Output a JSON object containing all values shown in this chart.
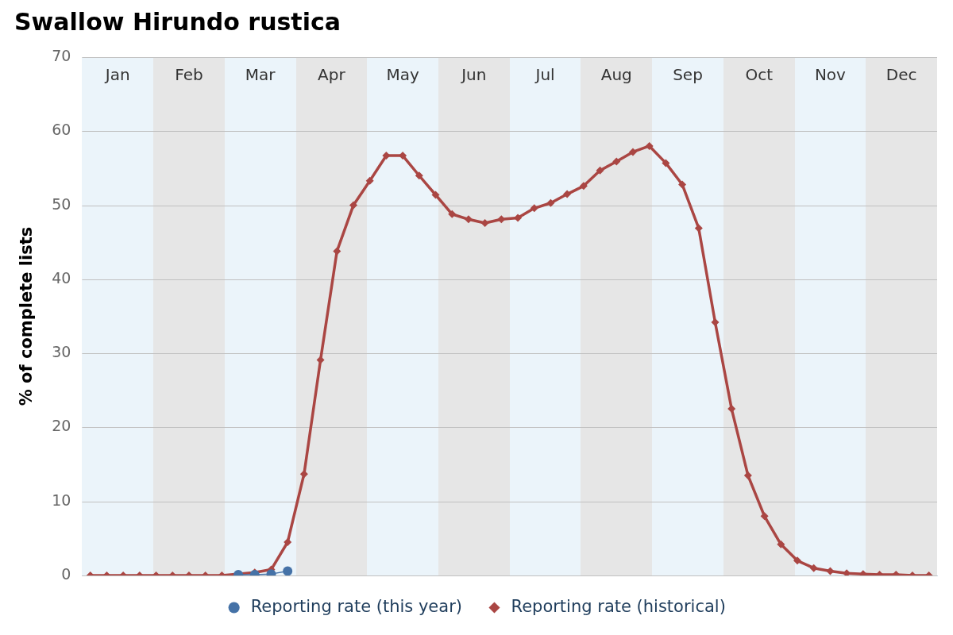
{
  "chart_data": {
    "type": "line",
    "title": "Swallow Hirundo rustica",
    "ylabel": "% of complete lists",
    "categories": [
      null,
      null,
      null,
      null,
      null,
      null,
      null,
      null,
      null,
      null,
      null,
      null,
      null,
      null,
      null,
      null,
      null,
      null,
      null,
      null,
      null,
      null,
      null,
      null,
      null,
      null,
      null,
      null,
      null,
      null,
      null,
      null,
      null,
      null,
      null,
      null,
      null,
      null,
      null,
      null,
      null,
      null,
      null,
      null,
      null,
      null,
      null,
      null,
      null,
      null,
      null,
      null
    ],
    "ylim": [
      0,
      70
    ],
    "yticks": [
      0,
      10,
      20,
      30,
      40,
      50,
      60,
      70
    ],
    "grid": "y",
    "legend": "bottom",
    "tick_labels": "y",
    "annotations": [
      "Jan",
      "Feb",
      "Mar",
      "Apr",
      "May",
      "Jun",
      "Jul",
      "Aug",
      "Sep",
      "Oct",
      "Nov",
      "Dec"
    ],
    "series": [
      {
        "name": "Reporting rate (historical)",
        "color": "#aa4643",
        "marker": "diamond",
        "values": [
          0,
          0,
          0,
          0,
          0,
          0,
          0,
          0,
          0,
          null,
          0.4,
          0.8,
          4.5,
          13.7,
          29.1,
          43.8,
          50,
          53.3,
          56.7,
          56.7,
          54,
          51.4,
          48.8,
          48.1,
          47.6,
          48.1,
          48.3,
          49.6,
          50.3,
          51.5,
          52.6,
          54.7,
          55.9,
          57.2,
          58,
          55.7,
          52.8,
          46.9,
          34.2,
          22.5,
          13.5,
          8,
          4.2,
          2,
          1,
          0.6,
          0.3,
          0.2,
          0.1,
          0.1,
          0,
          0
        ]
      },
      {
        "name": "Reporting rate (this year)",
        "color": "#4572a7",
        "marker": "circle",
        "values": [
          null,
          null,
          null,
          null,
          null,
          null,
          null,
          null,
          null,
          0.1,
          0.1,
          0.2,
          0.6,
          null,
          null,
          null,
          null,
          null,
          null,
          null,
          null,
          null,
          null,
          null,
          null,
          null,
          null,
          null,
          null,
          null,
          null,
          null,
          null,
          null,
          null,
          null,
          null,
          null,
          null,
          null,
          null,
          null,
          null,
          null,
          null,
          null,
          null,
          null,
          null,
          null,
          null,
          null
        ]
      }
    ]
  }
}
